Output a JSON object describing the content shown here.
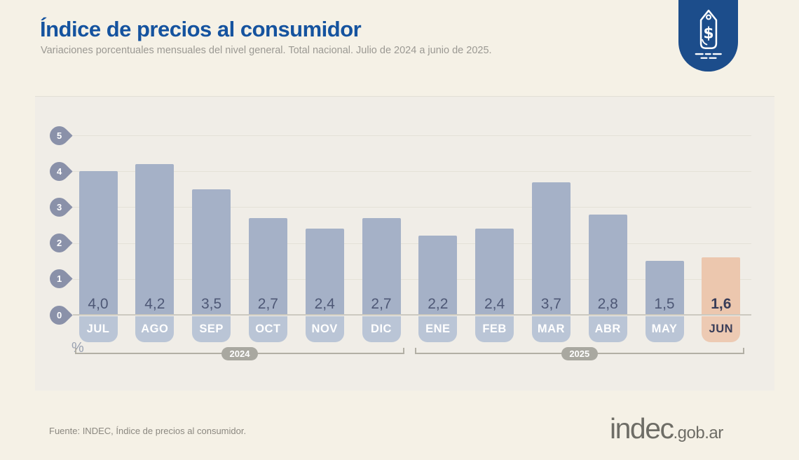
{
  "header": {
    "title": "Índice de precios al consumidor",
    "subtitle": "Variaciones porcentuales mensuales del nivel general. Total nacional. Julio de 2024 a junio de 2025."
  },
  "badge": {
    "icon": "price-tag-icon",
    "color": "#1c4d8b"
  },
  "chart_data": {
    "type": "bar",
    "title": "Índice de precios al consumidor",
    "categories": [
      "JUL",
      "AGO",
      "SEP",
      "OCT",
      "NOV",
      "DIC",
      "ENE",
      "FEB",
      "MAR",
      "ABR",
      "MAY",
      "JUN"
    ],
    "values": [
      4.0,
      4.2,
      3.5,
      2.7,
      2.4,
      2.7,
      2.2,
      2.4,
      3.7,
      2.8,
      1.5,
      1.6
    ],
    "value_labels": [
      "4,0",
      "4,2",
      "3,5",
      "2,7",
      "2,4",
      "2,7",
      "2,2",
      "2,4",
      "3,7",
      "2,8",
      "1,5",
      "1,6"
    ],
    "highlight_index": 11,
    "y_ticks": [
      0,
      1,
      2,
      3,
      4,
      5
    ],
    "ylim": [
      0,
      5
    ],
    "unit_label": "%",
    "grid": true,
    "year_groups": [
      {
        "label": "2024",
        "from": 0,
        "to": 5
      },
      {
        "label": "2025",
        "from": 6,
        "to": 11
      }
    ],
    "colors": {
      "bar": "#a5b1c7",
      "bar_pill": "#bac5d6",
      "highlight_bar": "#ecc7ae",
      "highlight_pill": "#edcab3",
      "axis_pin": "#8a91a9",
      "value_text": "#4e5876",
      "highlight_text": "#393d58"
    }
  },
  "footer": {
    "source": "Fuente: INDEC, Índice de precios al consumidor.",
    "logo_main": "indec",
    "logo_suffix": ".gob.ar"
  }
}
